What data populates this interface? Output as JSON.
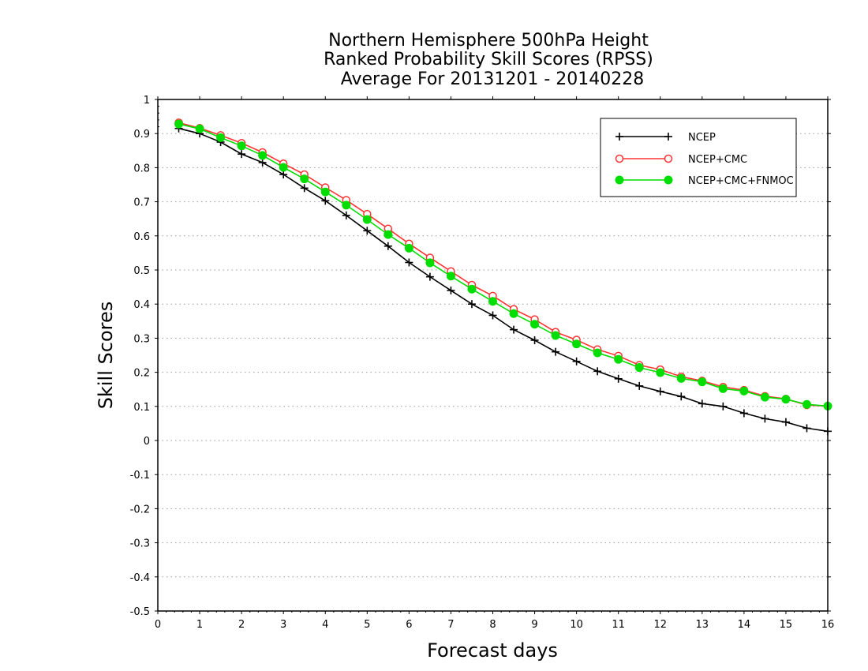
{
  "chart_data": {
    "type": "line",
    "title_lines": [
      "Northern Hemisphere 500hPa Height",
      "Ranked Probability Skill Scores (RPSS)",
      "Average For 20131201 - 20140228"
    ],
    "xlabel": "Forecast days",
    "ylabel": "Skill Scores",
    "xlim": [
      0,
      16
    ],
    "ylim": [
      -0.5,
      1
    ],
    "xticks": [
      "0",
      "1",
      "2",
      "3",
      "4",
      "5",
      "6",
      "7",
      "8",
      "9",
      "10",
      "11",
      "12",
      "13",
      "14",
      "15",
      "16"
    ],
    "yticks": [
      "1",
      "0.9",
      "0.8",
      "0.7",
      "0.6",
      "0.5",
      "0.4",
      "0.3",
      "0.2",
      "0.1",
      "0",
      "-0.1",
      "-0.2",
      "-0.3",
      "-0.4",
      "-0.5"
    ],
    "grid": true,
    "legend_position": "top-right",
    "x": [
      0.5,
      1,
      1.5,
      2,
      2.5,
      3,
      3.5,
      4,
      4.5,
      5,
      5.5,
      6,
      6.5,
      7,
      7.5,
      8,
      8.5,
      9,
      9.5,
      10,
      10.5,
      11,
      11.5,
      12,
      12.5,
      13,
      13.5,
      14,
      14.5,
      15,
      15.5,
      16
    ],
    "series": [
      {
        "name": "NCEP",
        "color": "#000000",
        "marker": "plus",
        "values": [
          0.915,
          0.9,
          0.875,
          0.84,
          0.815,
          0.78,
          0.74,
          0.703,
          0.66,
          0.615,
          0.57,
          0.522,
          0.48,
          0.44,
          0.4,
          0.367,
          0.325,
          0.294,
          0.26,
          0.232,
          0.203,
          0.181,
          0.16,
          0.144,
          0.129,
          0.108,
          0.1,
          0.08,
          0.064,
          0.054,
          0.036,
          0.027
        ]
      },
      {
        "name": "NCEP+CMC",
        "color": "#ff3333",
        "marker": "open-circle",
        "values": [
          0.932,
          0.916,
          0.895,
          0.872,
          0.845,
          0.812,
          0.78,
          0.742,
          0.705,
          0.664,
          0.621,
          0.577,
          0.536,
          0.496,
          0.456,
          0.424,
          0.385,
          0.355,
          0.318,
          0.295,
          0.267,
          0.248,
          0.221,
          0.208,
          0.187,
          0.175,
          0.157,
          0.148,
          0.13,
          0.122,
          0.104,
          0.101
        ]
      },
      {
        "name": "NCEP+CMC+FNMOC",
        "color": "#00dd00",
        "marker": "filled-circle",
        "values": [
          0.928,
          0.914,
          0.888,
          0.864,
          0.836,
          0.801,
          0.767,
          0.729,
          0.69,
          0.648,
          0.604,
          0.564,
          0.521,
          0.482,
          0.444,
          0.408,
          0.372,
          0.341,
          0.308,
          0.283,
          0.257,
          0.238,
          0.214,
          0.199,
          0.182,
          0.172,
          0.152,
          0.145,
          0.127,
          0.121,
          0.106,
          0.101
        ]
      }
    ]
  }
}
